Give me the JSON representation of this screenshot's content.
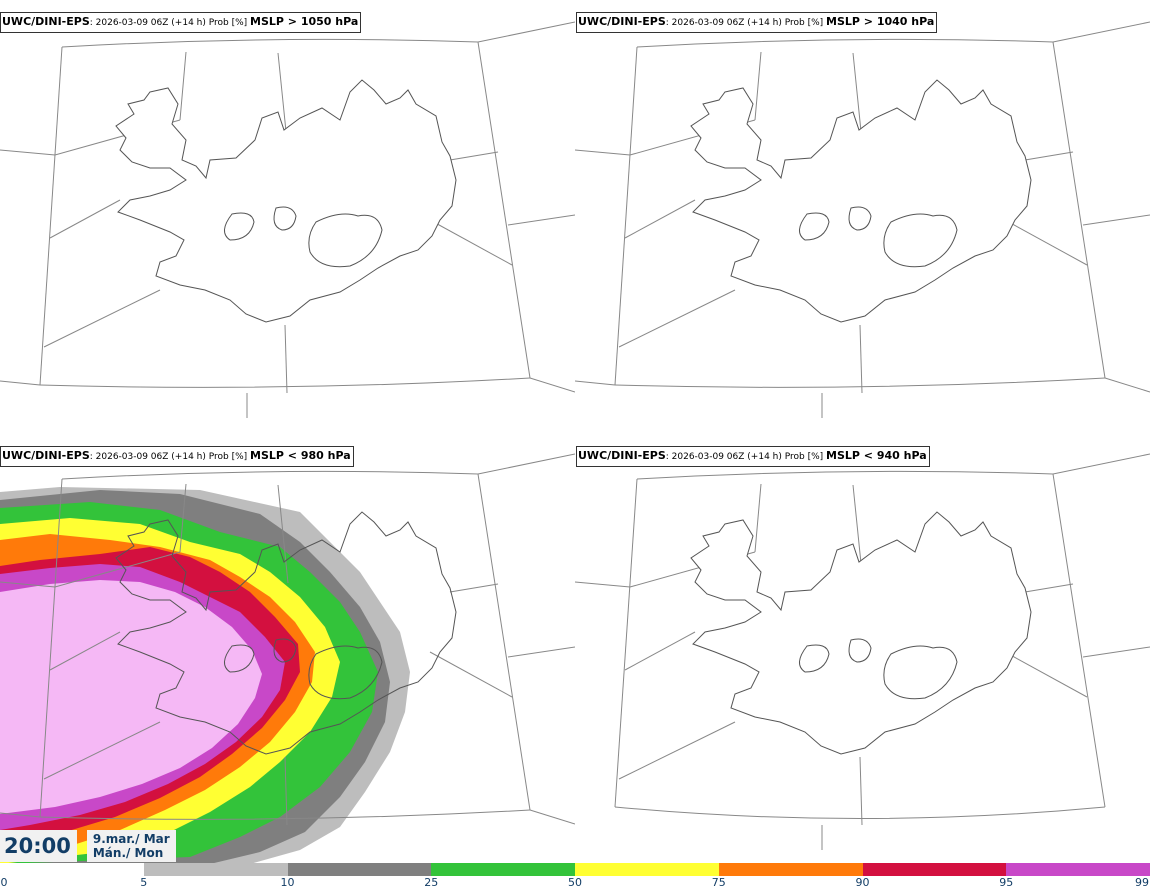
{
  "panels": [
    {
      "model": "UWC/DINI-EPS",
      "run": ": 2026-03-09 06Z (+14 h) Prob [%] ",
      "variable": "MSLP > 1050 hPa"
    },
    {
      "model": "UWC/DINI-EPS",
      "run": ": 2026-03-09 06Z (+14 h) Prob [%] ",
      "variable": "MSLP > 1040 hPa"
    },
    {
      "model": "UWC/DINI-EPS",
      "run": ": 2026-03-09 06Z (+14 h) Prob [%] ",
      "variable": "MSLP < 980 hPa"
    },
    {
      "model": "UWC/DINI-EPS",
      "run": ": 2026-03-09 06Z (+14 h) Prob [%] ",
      "variable": "MSLP < 940 hPa"
    }
  ],
  "valid_time": {
    "time": "20:00",
    "date_line1": "9.mar./ Mar",
    "date_line2": "Mán./ Mon"
  },
  "legend": {
    "ticks": [
      "0",
      "5",
      "10",
      "25",
      "50",
      "75",
      "90",
      "95",
      "99"
    ],
    "colors": [
      "#ffffff",
      "#bdbdbd",
      "#7f7f7f",
      "#33c33a",
      "#ffff33",
      "#ff7a0a",
      "#d3103f",
      "#c848c8",
      "#f5b8f5"
    ]
  },
  "colors": {
    "title_border": "#333333",
    "coast": "#555555",
    "grid": "#888888",
    "time_text": "#123d66"
  }
}
